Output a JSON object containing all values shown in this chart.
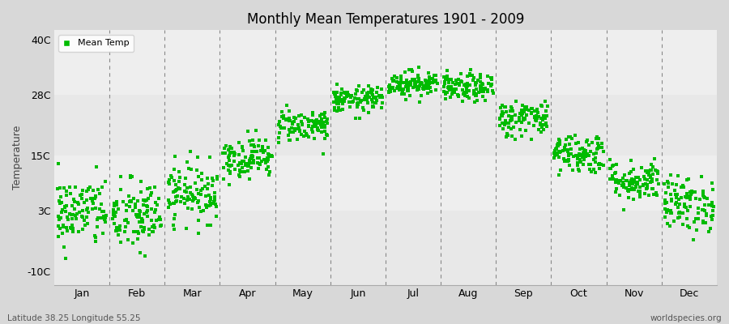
{
  "title": "Monthly Mean Temperatures 1901 - 2009",
  "ylabel": "Temperature",
  "xlabel_labels": [
    "Jan",
    "Feb",
    "Mar",
    "Apr",
    "May",
    "Jun",
    "Jul",
    "Aug",
    "Sep",
    "Oct",
    "Nov",
    "Dec"
  ],
  "ytick_labels": [
    "-10C",
    "3C",
    "15C",
    "28C",
    "40C"
  ],
  "ytick_values": [
    -10,
    3,
    15,
    28,
    40
  ],
  "ylim": [
    -13,
    42
  ],
  "dot_color": "#00bb00",
  "bg_color": "#d8d8d8",
  "plot_bg_color": "#e8e8e8",
  "band_color_light": "#eeeeee",
  "band_color_mid": "#e0e0e0",
  "legend_label": "Mean Temp",
  "footer_left": "Latitude 38.25 Longitude 55.25",
  "footer_right": "worldspecies.org",
  "n_years": 109,
  "monthly_means": [
    2.8,
    1.8,
    7.0,
    14.5,
    21.5,
    27.0,
    30.5,
    29.5,
    23.0,
    15.5,
    9.5,
    4.5
  ],
  "monthly_stds": [
    3.8,
    4.0,
    3.2,
    2.2,
    1.8,
    1.4,
    1.4,
    1.5,
    2.0,
    2.2,
    2.2,
    3.0
  ],
  "seed": 42
}
